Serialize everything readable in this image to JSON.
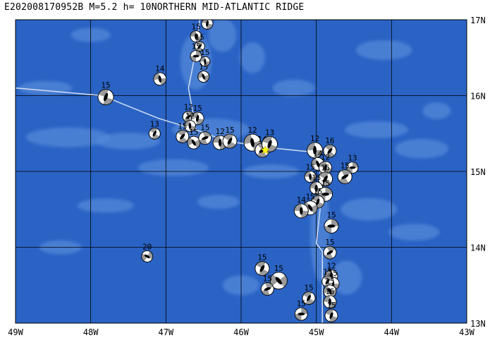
{
  "header": {
    "event_id": "E202008170952B",
    "magnitude": "M=5.2",
    "depth": "h= 10",
    "region": "NORTHERN MID-ATLANTIC RIDGE"
  },
  "map": {
    "lon_range": [
      -49,
      -43
    ],
    "lat_range": [
      13,
      17
    ],
    "x_tick_labels": [
      "49W",
      "48W",
      "47W",
      "46W",
      "45W",
      "44W",
      "43W"
    ],
    "y_tick_labels": [
      "17N",
      "16N",
      "15N",
      "14N",
      "13N"
    ],
    "colors": {
      "ocean": "#2a63c4",
      "ridge_shallow": "#5b8fdc",
      "plate_boundary": "#c8d8f0",
      "grid": "#000000",
      "epicenter": "#ffff00"
    },
    "plate_boundary": [
      [
        -49.0,
        16.1
      ],
      [
        -47.85,
        16.0
      ],
      [
        -47.1,
        15.7
      ],
      [
        -46.6,
        15.55
      ],
      [
        -46.2,
        15.4
      ],
      [
        -45.5,
        15.3
      ],
      [
        -45.0,
        15.25
      ],
      [
        -44.95,
        15.0
      ],
      [
        -44.95,
        14.5
      ],
      [
        -45.0,
        14.05
      ],
      [
        -44.92,
        13.95
      ],
      [
        -44.92,
        13.0
      ]
    ],
    "branch_boundary": [
      [
        -46.6,
        15.55
      ],
      [
        -46.7,
        16.1
      ],
      [
        -46.6,
        16.6
      ],
      [
        -46.55,
        17.0
      ]
    ],
    "epicenter": {
      "lon": -45.68,
      "lat": 15.28
    },
    "mechanisms": [
      {
        "lon": -47.8,
        "lat": 15.98,
        "depth": "15",
        "size": 11,
        "rot": 20
      },
      {
        "lon": -47.08,
        "lat": 16.22,
        "depth": "14",
        "size": 9,
        "rot": -10
      },
      {
        "lon": -47.15,
        "lat": 15.5,
        "depth": "13",
        "size": 8,
        "rot": 30
      },
      {
        "lon": -46.45,
        "lat": 16.95,
        "depth": "14",
        "size": 8,
        "rot": 10
      },
      {
        "lon": -46.6,
        "lat": 16.78,
        "depth": "15",
        "size": 8,
        "rot": 0
      },
      {
        "lon": -46.55,
        "lat": 16.65,
        "depth": "15",
        "size": 7,
        "rot": 45
      },
      {
        "lon": -46.6,
        "lat": 16.52,
        "depth": "15",
        "size": 8,
        "rot": 90
      },
      {
        "lon": -46.48,
        "lat": 16.45,
        "depth": "15",
        "size": 7,
        "rot": 0
      },
      {
        "lon": -46.5,
        "lat": 16.25,
        "depth": "15",
        "size": 8,
        "rot": -20
      },
      {
        "lon": -46.7,
        "lat": 15.72,
        "depth": "12",
        "size": 8,
        "rot": 60
      },
      {
        "lon": -46.58,
        "lat": 15.7,
        "depth": "15",
        "size": 9,
        "rot": 10
      },
      {
        "lon": -46.68,
        "lat": 15.6,
        "depth": "12",
        "size": 8,
        "rot": 0
      },
      {
        "lon": -46.78,
        "lat": 15.46,
        "depth": "15",
        "size": 9,
        "rot": 40
      },
      {
        "lon": -46.63,
        "lat": 15.38,
        "depth": "15",
        "size": 9,
        "rot": -30
      },
      {
        "lon": -46.48,
        "lat": 15.44,
        "depth": "15",
        "size": 9,
        "rot": 70
      },
      {
        "lon": -46.28,
        "lat": 15.38,
        "depth": "12",
        "size": 10,
        "rot": 0
      },
      {
        "lon": -46.15,
        "lat": 15.4,
        "depth": "15",
        "size": 10,
        "rot": 30
      },
      {
        "lon": -45.85,
        "lat": 15.38,
        "depth": "12",
        "size": 12,
        "rot": -10
      },
      {
        "lon": -45.72,
        "lat": 15.28,
        "depth": "14",
        "size": 10,
        "rot": 50
      },
      {
        "lon": -45.62,
        "lat": 15.36,
        "depth": "13",
        "size": 11,
        "rot": 20
      },
      {
        "lon": -45.02,
        "lat": 15.28,
        "depth": "12",
        "size": 11,
        "rot": 0
      },
      {
        "lon": -44.82,
        "lat": 15.27,
        "depth": "16",
        "size": 9,
        "rot": 40
      },
      {
        "lon": -44.98,
        "lat": 15.1,
        "depth": "14",
        "size": 9,
        "rot": -20
      },
      {
        "lon": -44.88,
        "lat": 15.05,
        "depth": "12",
        "size": 9,
        "rot": 10
      },
      {
        "lon": -44.52,
        "lat": 15.05,
        "depth": "13",
        "size": 8,
        "rot": 90
      },
      {
        "lon": -44.62,
        "lat": 14.93,
        "depth": "15",
        "size": 10,
        "rot": 60
      },
      {
        "lon": -45.08,
        "lat": 14.93,
        "depth": "15",
        "size": 8,
        "rot": 0
      },
      {
        "lon": -44.88,
        "lat": 14.9,
        "depth": "15",
        "size": 10,
        "rot": 30
      },
      {
        "lon": -45.0,
        "lat": 14.78,
        "depth": "15",
        "size": 9,
        "rot": 0
      },
      {
        "lon": -44.88,
        "lat": 14.7,
        "depth": "15",
        "size": 10,
        "rot": 90
      },
      {
        "lon": -44.98,
        "lat": 14.6,
        "depth": "15",
        "size": 9,
        "rot": 20
      },
      {
        "lon": -45.08,
        "lat": 14.52,
        "depth": "15",
        "size": 10,
        "rot": -30
      },
      {
        "lon": -45.2,
        "lat": 14.48,
        "depth": "14",
        "size": 10,
        "rot": 0
      },
      {
        "lon": -44.8,
        "lat": 14.28,
        "depth": "15",
        "size": 10,
        "rot": 90
      },
      {
        "lon": -44.82,
        "lat": 13.93,
        "depth": "15",
        "size": 9,
        "rot": 60
      },
      {
        "lon": -45.72,
        "lat": 13.72,
        "depth": "15",
        "size": 10,
        "rot": 30
      },
      {
        "lon": -45.5,
        "lat": 13.56,
        "depth": "15",
        "size": 12,
        "rot": -40
      },
      {
        "lon": -45.65,
        "lat": 13.45,
        "depth": "15",
        "size": 9,
        "rot": 70
      },
      {
        "lon": -44.8,
        "lat": 13.62,
        "depth": "12",
        "size": 9,
        "rot": 10
      },
      {
        "lon": -44.78,
        "lat": 13.52,
        "depth": "15",
        "size": 9,
        "rot": 0
      },
      {
        "lon": -44.85,
        "lat": 13.55,
        "depth": "15",
        "size": 8,
        "rot": 40
      },
      {
        "lon": -44.82,
        "lat": 13.42,
        "depth": "15",
        "size": 9,
        "rot": -20
      },
      {
        "lon": -45.1,
        "lat": 13.33,
        "depth": "15",
        "size": 9,
        "rot": 30
      },
      {
        "lon": -44.82,
        "lat": 13.28,
        "depth": "15",
        "size": 9,
        "rot": 0
      },
      {
        "lon": -45.2,
        "lat": 13.12,
        "depth": "15",
        "size": 9,
        "rot": 90
      },
      {
        "lon": -44.8,
        "lat": 13.1,
        "depth": "15",
        "size": 9,
        "rot": 20
      },
      {
        "lon": -47.25,
        "lat": 13.88,
        "depth": "20",
        "size": 8,
        "rot": -60
      }
    ]
  }
}
